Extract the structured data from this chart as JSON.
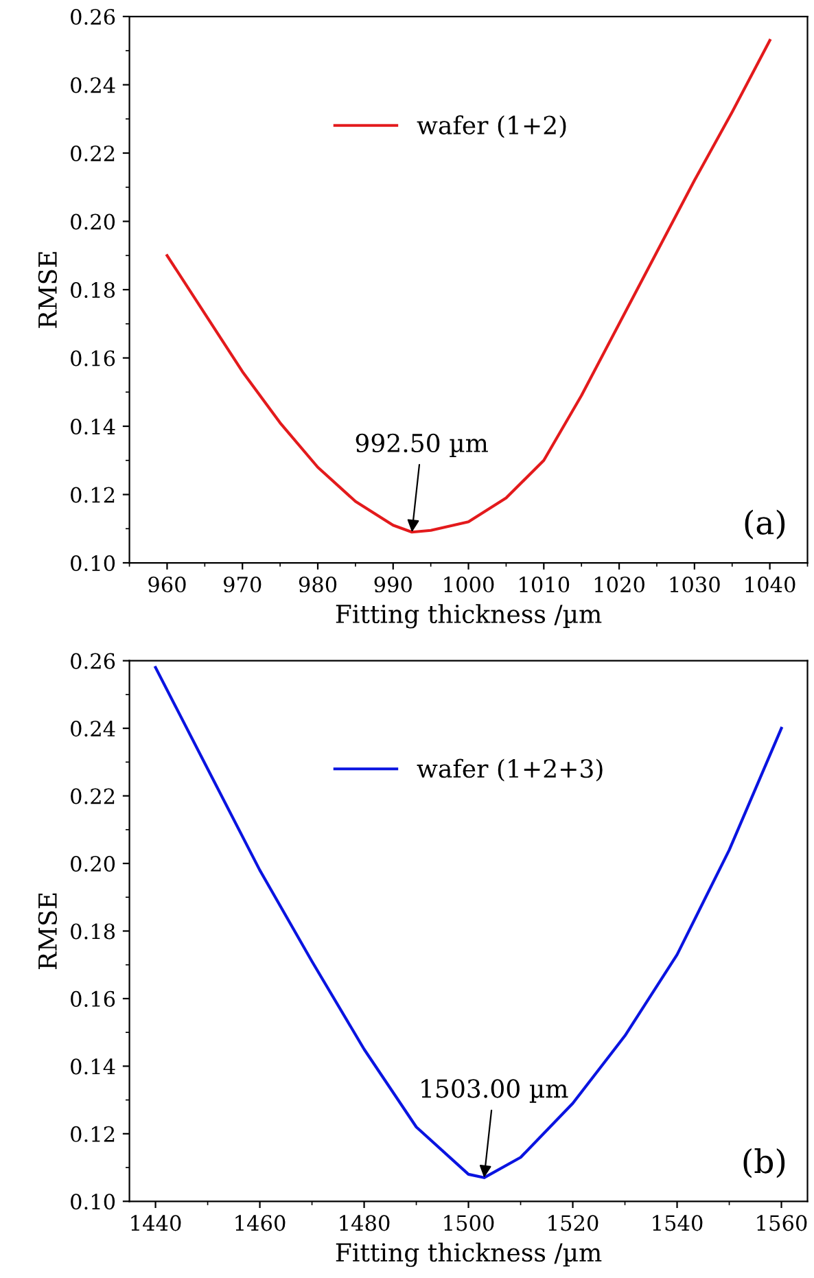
{
  "chart_data": [
    {
      "type": "line",
      "xlabel": "Fitting thickness /µm",
      "ylabel": "RMSE",
      "xlim": [
        955,
        1045
      ],
      "xticks": [
        960,
        970,
        980,
        990,
        1000,
        1010,
        1020,
        1030,
        1040
      ],
      "ylim": [
        0.1,
        0.26
      ],
      "yticks": [
        {
          "value": 0.1,
          "label": "0.10"
        },
        {
          "value": 0.12,
          "label": "0.12"
        },
        {
          "value": 0.14,
          "label": "0.14"
        },
        {
          "value": 0.16,
          "label": "0.16"
        },
        {
          "value": 0.18,
          "label": "0.18"
        },
        {
          "value": 0.2,
          "label": "0.20"
        },
        {
          "value": 0.22,
          "label": "0.22"
        },
        {
          "value": 0.24,
          "label": "0.24"
        },
        {
          "value": 0.26,
          "label": "0.26"
        }
      ],
      "x": [
        960,
        965,
        970,
        975,
        980,
        985,
        990,
        992.5,
        995,
        1000,
        1005,
        1010,
        1015,
        1020,
        1025,
        1030,
        1035,
        1040
      ],
      "series": [
        {
          "name": "wafer (1+2)",
          "color": "#e31a1c",
          "values": [
            0.19,
            0.173,
            0.156,
            0.141,
            0.128,
            0.118,
            0.111,
            0.109,
            0.1095,
            0.112,
            0.119,
            0.13,
            0.149,
            0.17,
            0.191,
            0.212,
            0.232,
            0.253
          ]
        }
      ],
      "annotations": [
        {
          "text": "992.50 µm",
          "x": 992.5,
          "y": 0.109
        },
        "(a)"
      ],
      "legend": "top",
      "grid": false,
      "line_style": "solid",
      "marker": "none"
    },
    {
      "type": "line",
      "xlabel": "Fitting thickness /µm",
      "ylabel": "RMSE",
      "xlim": [
        1435,
        1565
      ],
      "xticks": [
        1440,
        1460,
        1480,
        1500,
        1520,
        1540,
        1560
      ],
      "ylim": [
        0.1,
        0.26
      ],
      "yticks": [
        {
          "value": 0.1,
          "label": "0.10"
        },
        {
          "value": 0.12,
          "label": "0.12"
        },
        {
          "value": 0.14,
          "label": "0.14"
        },
        {
          "value": 0.16,
          "label": "0.16"
        },
        {
          "value": 0.18,
          "label": "0.18"
        },
        {
          "value": 0.2,
          "label": "0.20"
        },
        {
          "value": 0.22,
          "label": "0.22"
        },
        {
          "value": 0.24,
          "label": "0.24"
        },
        {
          "value": 0.26,
          "label": "0.26"
        }
      ],
      "x": [
        1440,
        1450,
        1460,
        1470,
        1480,
        1490,
        1500,
        1503,
        1510,
        1520,
        1530,
        1540,
        1550,
        1560
      ],
      "series": [
        {
          "name": "wafer (1+2+3)",
          "color": "#0a14e0",
          "values": [
            0.258,
            0.228,
            0.198,
            0.171,
            0.145,
            0.122,
            0.108,
            0.107,
            0.113,
            0.129,
            0.149,
            0.173,
            0.204,
            0.24
          ]
        }
      ],
      "annotations": [
        {
          "text": "1503.00 µm",
          "x": 1503,
          "y": 0.107
        },
        "(b)"
      ],
      "legend": "top",
      "grid": false,
      "line_style": "solid",
      "marker": "none"
    }
  ]
}
